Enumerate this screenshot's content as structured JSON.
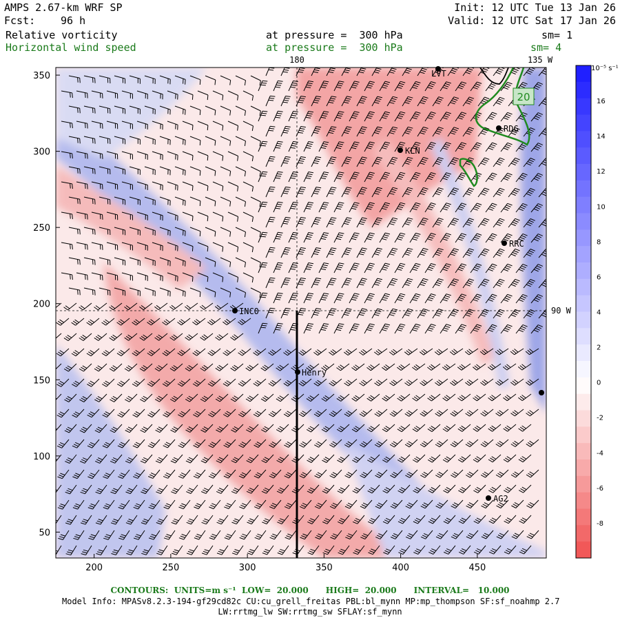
{
  "header": {
    "model": "AMPS 2.67-km WRF SP",
    "fcst_label": "Fcst:",
    "fcst_value": "96 h",
    "init": "Init: 12 UTC Tue 13 Jan 26",
    "valid": "Valid: 12 UTC Sat 17 Jan 26",
    "field1_name": "Relative vorticity",
    "field1_level": "at pressure =  300 hPa",
    "field1_sm": "sm= 1",
    "field2_name": "Horizontal wind speed",
    "field2_level": "at pressure =  300 hPa",
    "field2_sm": "sm= 4"
  },
  "map": {
    "meridian_180_label": "180",
    "meridian_135w_label": "135 W",
    "meridian_90w_label": "90 W",
    "contour_label": "20",
    "stations": [
      {
        "name": "LVT"
      },
      {
        "name": "RDG"
      },
      {
        "name": "KLN"
      },
      {
        "name": "RRC"
      },
      {
        "name": "INC0"
      },
      {
        "name": "Henry"
      },
      {
        "name": "AG2"
      },
      {
        "name": ""
      }
    ],
    "x_ticks": [
      "200",
      "250",
      "300",
      "350",
      "400",
      "450"
    ],
    "y_ticks": [
      "350",
      "300",
      "250",
      "200",
      "150",
      "100",
      "50"
    ],
    "x_range": [
      175,
      495
    ],
    "y_range": [
      33,
      355
    ]
  },
  "colorbar": {
    "units": "10⁻⁵ s⁻¹",
    "labels": [
      "16",
      "14",
      "12",
      "10",
      "8",
      "6",
      "4",
      "2",
      "0",
      "-2",
      "-4",
      "-6",
      "-8"
    ],
    "colors": {
      "positive": "#1a1aff",
      "neutral": "#ffffff",
      "negative": "#f05050"
    }
  },
  "footer": {
    "contours": "CONTOURS:  UNITS=m s⁻¹  LOW=  20.000      HIGH=  20.000      INTERVAL=   10.000",
    "model_info": "Model Info: MPASv8.2.3-194-gf29cd82c CU:cu_grell_freitas PBL:bl_mynn MP:mp_thompson SF:sf_noahmp 2.7",
    "model_info2": "LW:rrtmg_lw SW:rrtmg_sw SFLAY:sf_mynn"
  }
}
